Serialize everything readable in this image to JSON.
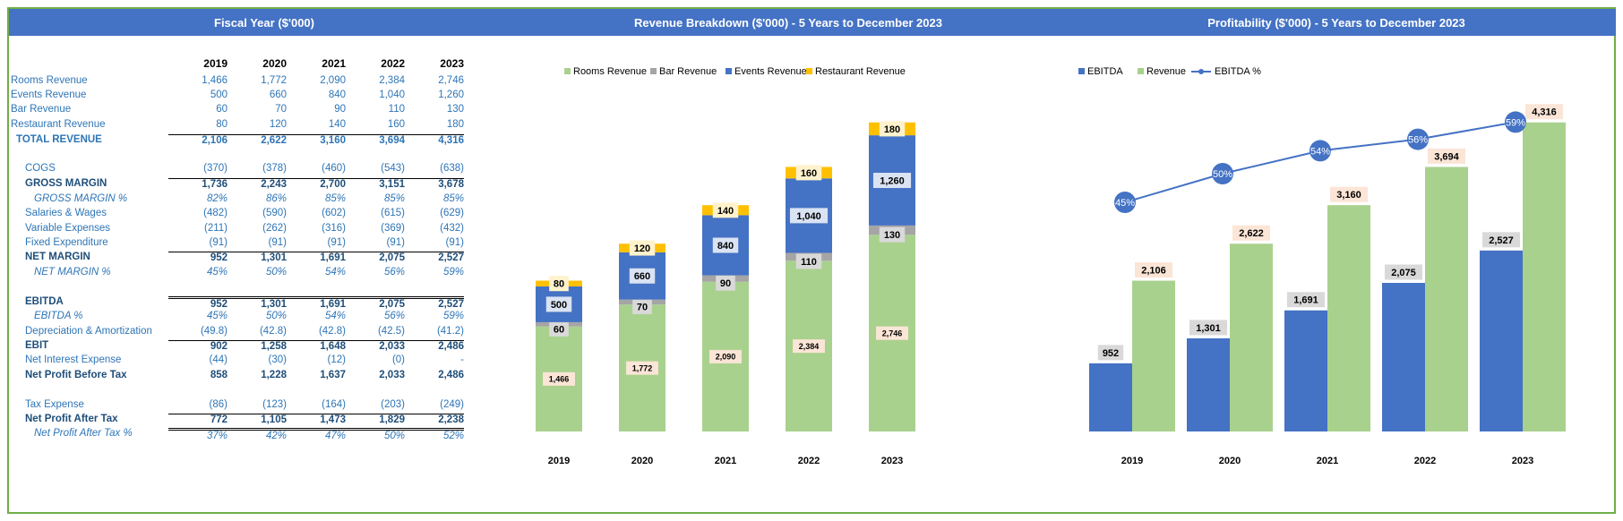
{
  "headers": {
    "fiscal": "Fiscal Year ($'000)",
    "revenue": "Revenue Breakdown ($'000) - 5 Years to December 2023",
    "profit": "Profitability ($'000) - 5 Years to December 2023"
  },
  "years": [
    "2019",
    "2020",
    "2021",
    "2022",
    "2023"
  ],
  "table": [
    {
      "label": "Rooms Revenue",
      "values": [
        "1,466",
        "1,772",
        "2,090",
        "2,384",
        "2,746"
      ]
    },
    {
      "label": "Events Revenue",
      "values": [
        "500",
        "660",
        "840",
        "1,040",
        "1,260"
      ]
    },
    {
      "label": "Bar Revenue",
      "values": [
        "60",
        "70",
        "90",
        "110",
        "130"
      ]
    },
    {
      "label": "Restaurant Revenue",
      "values": [
        "80",
        "120",
        "140",
        "160",
        "180"
      ]
    },
    {
      "label": "TOTAL REVENUE",
      "values": [
        "2,106",
        "2,622",
        "3,160",
        "3,694",
        "4,316"
      ]
    },
    {
      "label": "COGS",
      "values": [
        "(370)",
        "(378)",
        "(460)",
        "(543)",
        "(638)"
      ]
    },
    {
      "label": "GROSS MARGIN",
      "values": [
        "1,736",
        "2,243",
        "2,700",
        "3,151",
        "3,678"
      ]
    },
    {
      "label": "GROSS MARGIN %",
      "values": [
        "82%",
        "86%",
        "85%",
        "85%",
        "85%"
      ]
    },
    {
      "label": "Salaries & Wages",
      "values": [
        "(482)",
        "(590)",
        "(602)",
        "(615)",
        "(629)"
      ]
    },
    {
      "label": "Variable Expenses",
      "values": [
        "(211)",
        "(262)",
        "(316)",
        "(369)",
        "(432)"
      ]
    },
    {
      "label": "Fixed Expenditure",
      "values": [
        "(91)",
        "(91)",
        "(91)",
        "(91)",
        "(91)"
      ]
    },
    {
      "label": "NET MARGIN",
      "values": [
        "952",
        "1,301",
        "1,691",
        "2,075",
        "2,527"
      ]
    },
    {
      "label": "NET MARGIN %",
      "values": [
        "45%",
        "50%",
        "54%",
        "56%",
        "59%"
      ]
    },
    {
      "label": "EBITDA",
      "values": [
        "952",
        "1,301",
        "1,691",
        "2,075",
        "2,527"
      ]
    },
    {
      "label": "EBITDA %",
      "values": [
        "45%",
        "50%",
        "54%",
        "56%",
        "59%"
      ]
    },
    {
      "label": "Depreciation & Amortization",
      "values": [
        "(49.8)",
        "(42.8)",
        "(42.8)",
        "(42.5)",
        "(41.2)"
      ]
    },
    {
      "label": "EBIT",
      "values": [
        "902",
        "1,258",
        "1,648",
        "2,033",
        "2,486"
      ]
    },
    {
      "label": "Net Interest Expense",
      "values": [
        "(44)",
        "(30)",
        "(12)",
        "(0)",
        "-"
      ]
    },
    {
      "label": "Net Profit Before Tax",
      "values": [
        "858",
        "1,228",
        "1,637",
        "2,033",
        "2,486"
      ]
    },
    {
      "label": "Tax Expense",
      "values": [
        "(86)",
        "(123)",
        "(164)",
        "(203)",
        "(249)"
      ]
    },
    {
      "label": "Net Profit After Tax",
      "values": [
        "772",
        "1,105",
        "1,473",
        "1,829",
        "2,238"
      ]
    },
    {
      "label": "Net Profit After Tax %",
      "values": [
        "37%",
        "42%",
        "47%",
        "50%",
        "52%"
      ]
    }
  ],
  "chart_data": [
    {
      "type": "bar",
      "stacked": true,
      "title": "Revenue Breakdown ($'000) - 5 Years to December 2023",
      "categories": [
        "2019",
        "2020",
        "2021",
        "2022",
        "2023"
      ],
      "series": [
        {
          "name": "Rooms Revenue",
          "values": [
            1466,
            1772,
            2090,
            2384,
            2746
          ],
          "labels": [
            "1,466",
            "1,772",
            "2,090",
            "2,384",
            "2,746"
          ],
          "color": "#a9d18e"
        },
        {
          "name": "Bar Revenue",
          "values": [
            60,
            70,
            90,
            110,
            130
          ],
          "labels": [
            "60",
            "70",
            "90",
            "110",
            "130"
          ],
          "color": "#a5a5a5"
        },
        {
          "name": "Events Revenue",
          "values": [
            500,
            660,
            840,
            1040,
            1260
          ],
          "labels": [
            "500",
            "660",
            "840",
            "1,040",
            "1,260"
          ],
          "color": "#4472c4"
        },
        {
          "name": "Restaurant Revenue",
          "values": [
            80,
            120,
            140,
            160,
            180
          ],
          "labels": [
            "80",
            "120",
            "140",
            "160",
            "180"
          ],
          "color": "#ffc000"
        }
      ],
      "ylim": [
        0,
        4550
      ],
      "legend": "top",
      "grid": false
    },
    {
      "type": "bar",
      "title": "Profitability ($'000) - 5 Years to December 2023",
      "categories": [
        "2019",
        "2020",
        "2021",
        "2022",
        "2023"
      ],
      "series": [
        {
          "name": "EBITDA",
          "values": [
            952,
            1301,
            1691,
            2075,
            2527
          ],
          "labels": [
            "952",
            "1,301",
            "1,691",
            "2,075",
            "2,527"
          ],
          "color": "#4472c4"
        },
        {
          "name": "Revenue",
          "values": [
            2106,
            2622,
            3160,
            3694,
            4316
          ],
          "labels": [
            "2,106",
            "2,622",
            "3,160",
            "3,694",
            "4,316"
          ],
          "color": "#a9d18e"
        }
      ],
      "line": {
        "name": "EBITDA %",
        "values": [
          45,
          50,
          54,
          56,
          59
        ],
        "labels": [
          "45%",
          "50%",
          "54%",
          "56%",
          "59%"
        ],
        "color": "#4472c4"
      },
      "ylim": [
        0,
        4550
      ],
      "legend": "top",
      "grid": false
    }
  ]
}
